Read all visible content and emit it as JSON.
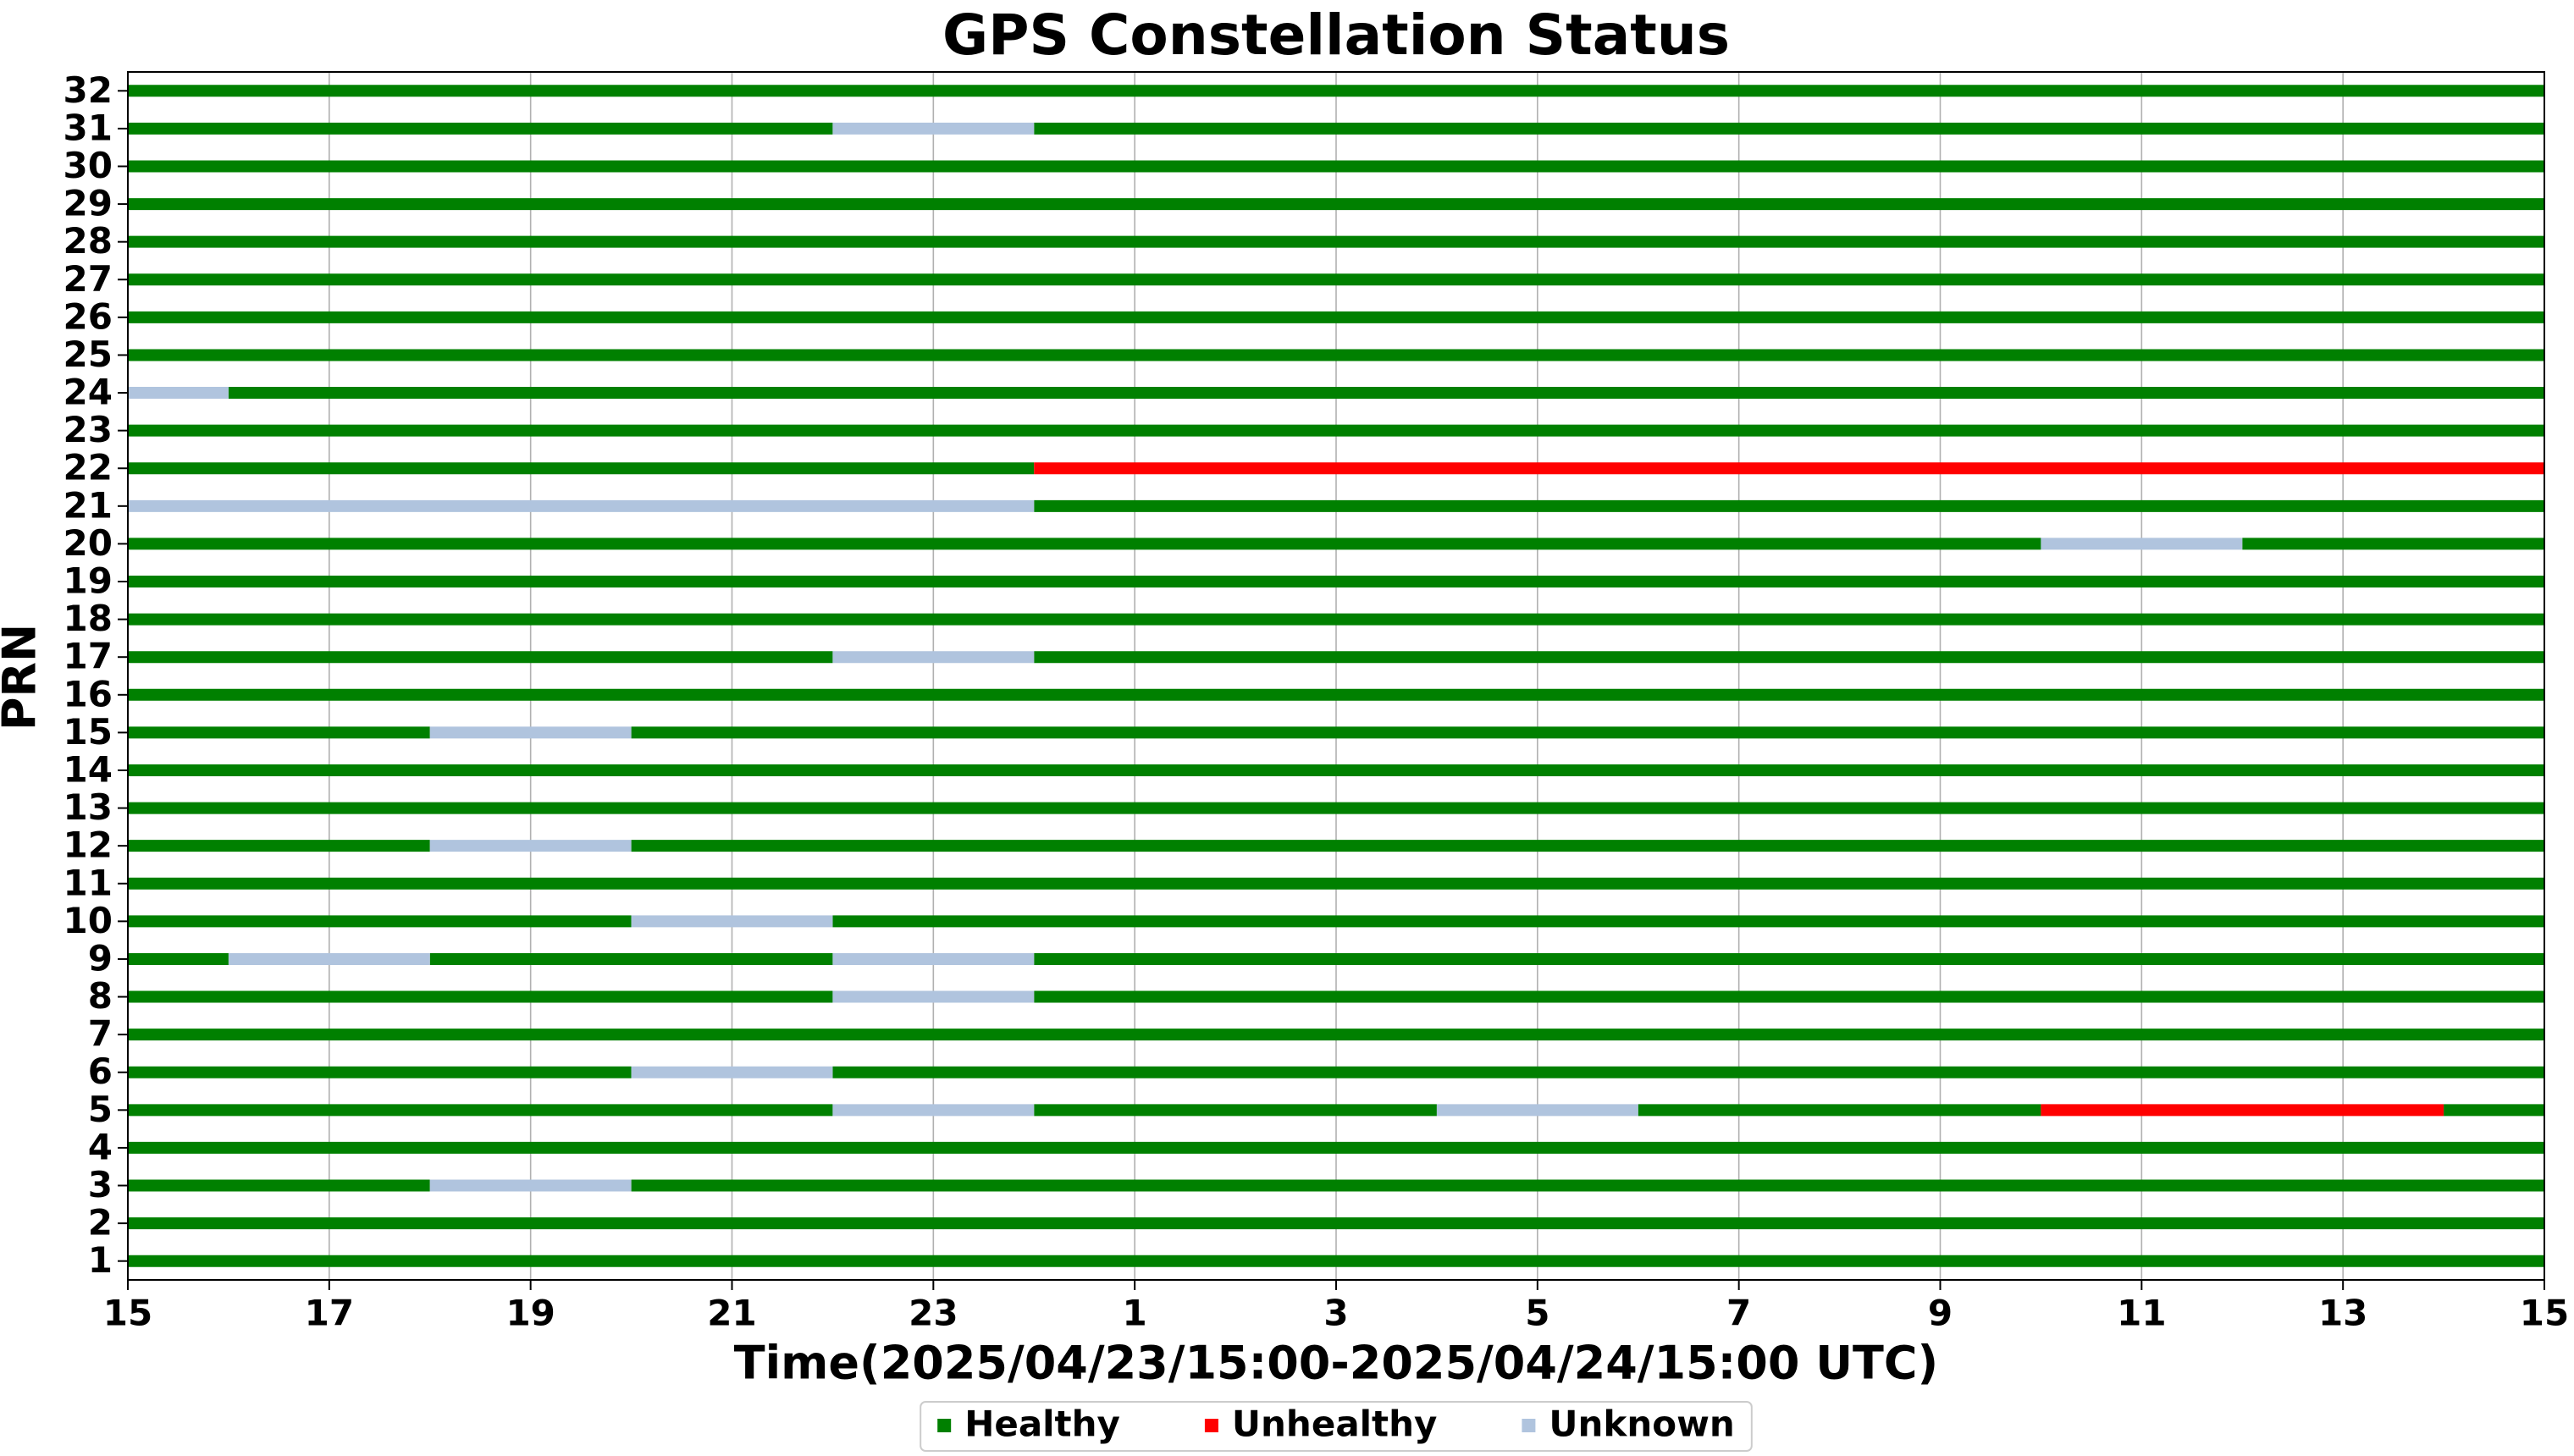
{
  "chart_data": {
    "type": "timeline",
    "title": "GPS Constellation Status",
    "xlabel": "Time(2025/04/23/15:00-2025/04/24/15:00 UTC)",
    "ylabel": "PRN",
    "xlim": [
      15,
      39
    ],
    "ylim": [
      0.5,
      32.5
    ],
    "xticks": [
      15,
      17,
      19,
      21,
      23,
      {
        "value": 25,
        "label": "1"
      },
      {
        "value": 27,
        "label": "3"
      },
      {
        "value": 29,
        "label": "5"
      },
      {
        "value": 31,
        "label": "7"
      },
      {
        "value": 33,
        "label": "9"
      },
      {
        "value": 35,
        "label": "11"
      },
      {
        "value": 37,
        "label": "13"
      },
      {
        "value": 39,
        "label": "15"
      }
    ],
    "categories": [
      1,
      2,
      3,
      4,
      5,
      6,
      7,
      8,
      9,
      10,
      11,
      12,
      13,
      14,
      15,
      16,
      17,
      18,
      19,
      20,
      21,
      22,
      23,
      24,
      25,
      26,
      27,
      28,
      29,
      30,
      31,
      32
    ],
    "grid": true,
    "legend": "lower center",
    "series": [
      {
        "name": "Healthy",
        "color": "#008000",
        "segments": [
          [
            32,
            15,
            39
          ],
          [
            31,
            15,
            22
          ],
          [
            31,
            24,
            39
          ],
          [
            30,
            15,
            39
          ],
          [
            29,
            15,
            39
          ],
          [
            28,
            15,
            39
          ],
          [
            27,
            15,
            39
          ],
          [
            26,
            15,
            39
          ],
          [
            25,
            15,
            39
          ],
          [
            24,
            16,
            39
          ],
          [
            23,
            15,
            39
          ],
          [
            22,
            15,
            24
          ],
          [
            21,
            24,
            39
          ],
          [
            20,
            15,
            34
          ],
          [
            20,
            36,
            39
          ],
          [
            19,
            15,
            39
          ],
          [
            18,
            15,
            39
          ],
          [
            17,
            15,
            22
          ],
          [
            17,
            24,
            39
          ],
          [
            16,
            15,
            39
          ],
          [
            15,
            15,
            18
          ],
          [
            15,
            20,
            39
          ],
          [
            14,
            15,
            39
          ],
          [
            13,
            15,
            39
          ],
          [
            12,
            15,
            18
          ],
          [
            12,
            20,
            39
          ],
          [
            11,
            15,
            39
          ],
          [
            10,
            15,
            20
          ],
          [
            10,
            22,
            39
          ],
          [
            9,
            15,
            16
          ],
          [
            9,
            18,
            22
          ],
          [
            9,
            24,
            39
          ],
          [
            8,
            15,
            22
          ],
          [
            8,
            24,
            39
          ],
          [
            7,
            15,
            39
          ],
          [
            6,
            15,
            20
          ],
          [
            6,
            22,
            39
          ],
          [
            5,
            15,
            22
          ],
          [
            5,
            24,
            28
          ],
          [
            5,
            30,
            34
          ],
          [
            5,
            38,
            39
          ],
          [
            4,
            15,
            39
          ],
          [
            3,
            15,
            18
          ],
          [
            3,
            20,
            39
          ],
          [
            2,
            15,
            39
          ],
          [
            1,
            15,
            39
          ]
        ]
      },
      {
        "name": "Unhealthy",
        "color": "#ff0000",
        "segments": [
          [
            22,
            24,
            39
          ],
          [
            5,
            34,
            38
          ]
        ]
      },
      {
        "name": "Unknown",
        "color": "#b0c4de",
        "segments": [
          [
            31,
            22,
            24
          ],
          [
            24,
            15,
            16
          ],
          [
            21,
            15,
            24
          ],
          [
            20,
            34,
            36
          ],
          [
            17,
            22,
            24
          ],
          [
            15,
            18,
            20
          ],
          [
            12,
            18,
            20
          ],
          [
            10,
            20,
            22
          ],
          [
            9,
            16,
            18
          ],
          [
            9,
            22,
            24
          ],
          [
            8,
            22,
            24
          ],
          [
            6,
            20,
            22
          ],
          [
            5,
            22,
            24
          ],
          [
            5,
            28,
            30
          ],
          [
            3,
            18,
            20
          ]
        ]
      }
    ]
  }
}
